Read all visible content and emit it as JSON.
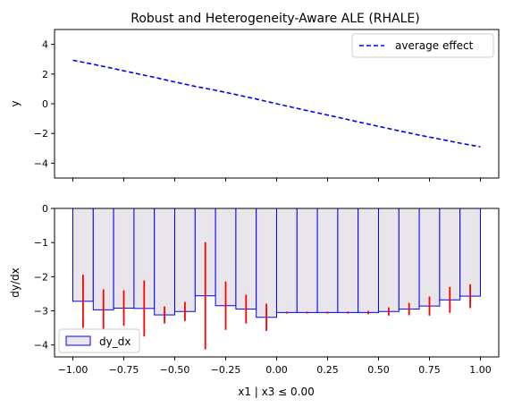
{
  "title": "Robust and Heterogeneity-Aware ALE (RHALE)",
  "chart_data": [
    {
      "type": "line",
      "panel": "top",
      "title": "Robust and Heterogeneity-Aware ALE (RHALE)",
      "xlabel": "",
      "ylabel": "y",
      "xlim": [
        -1.09,
        1.09
      ],
      "ylim": [
        -5,
        5
      ],
      "yticks": [
        -4,
        -2,
        0,
        2,
        4
      ],
      "xticks": [
        -1.0,
        -0.75,
        -0.5,
        -0.25,
        0.0,
        0.25,
        0.5,
        0.75,
        1.0
      ],
      "show_xtick_labels": false,
      "legend": "top-right",
      "series": [
        {
          "name": "average effect",
          "style": "dashed",
          "color": "#0000ff",
          "x": [
            -1.0,
            -0.9,
            -0.8,
            -0.7,
            -0.6,
            -0.5,
            -0.4,
            -0.3,
            -0.2,
            -0.1,
            0.0,
            0.1,
            0.2,
            0.3,
            0.4,
            0.5,
            0.6,
            0.7,
            0.8,
            0.9,
            1.0
          ],
          "y": [
            2.93,
            2.66,
            2.37,
            2.07,
            1.78,
            1.47,
            1.17,
            0.91,
            0.62,
            0.32,
            0.0,
            -0.31,
            -0.61,
            -0.91,
            -1.22,
            -1.52,
            -1.82,
            -2.11,
            -2.38,
            -2.65,
            -2.9
          ]
        }
      ]
    },
    {
      "type": "bar",
      "panel": "bottom",
      "xlabel": "x1 | x3 ≤ 0.00",
      "ylabel": "dy/dx",
      "xlim": [
        -1.09,
        1.09
      ],
      "ylim": [
        -4.35,
        0
      ],
      "yticks": [
        0,
        -1,
        -2,
        -3,
        -4
      ],
      "xticks": [
        -1.0,
        -0.75,
        -0.5,
        -0.25,
        0.0,
        0.25,
        0.5,
        0.75,
        1.0
      ],
      "xtick_labels": [
        "−1.00",
        "−0.75",
        "−0.50",
        "−0.25",
        "0.00",
        "0.25",
        "0.50",
        "0.75",
        "1.00"
      ],
      "legend": "bottom-left",
      "bar_series_name": "dy_dx",
      "bar_fill": "#e8e6ea",
      "bar_edge": "#0000ff",
      "error_color": "#ff0000",
      "bin_edges": [
        -1.0,
        -0.9,
        -0.8,
        -0.7,
        -0.6,
        -0.5,
        -0.4,
        -0.3,
        -0.2,
        -0.1,
        0.0,
        0.1,
        0.2,
        0.3,
        0.4,
        0.5,
        0.6,
        0.7,
        0.8,
        0.9,
        1.0
      ],
      "values": [
        -2.72,
        -2.97,
        -2.92,
        -2.93,
        -3.12,
        -3.02,
        -2.56,
        -2.85,
        -2.95,
        -3.19,
        -3.05,
        -3.05,
        -3.05,
        -3.05,
        -3.05,
        -3.02,
        -2.95,
        -2.86,
        -2.68,
        -2.57
      ],
      "errors": [
        0.78,
        0.6,
        0.52,
        0.82,
        0.25,
        0.28,
        1.57,
        0.71,
        0.42,
        0.4,
        0.03,
        0.03,
        0.03,
        0.03,
        0.05,
        0.12,
        0.18,
        0.28,
        0.38,
        0.35
      ]
    }
  ]
}
